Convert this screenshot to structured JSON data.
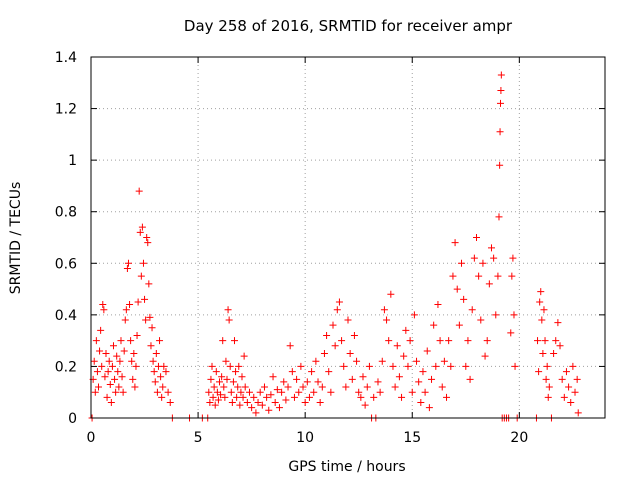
{
  "chart_data": {
    "type": "scatter",
    "title": "Day 258 of 2016, SRMTID for receiver ampr",
    "xlabel": "GPS time / hours",
    "ylabel": "SRMTID / TECUs",
    "xlim": [
      0,
      24
    ],
    "ylim": [
      0,
      1.4
    ],
    "xticks": [
      0,
      5,
      10,
      15,
      20
    ],
    "xtick_labels": [
      "0",
      "5",
      "10",
      "15",
      "20"
    ],
    "yticks": [
      0,
      0.2,
      0.4,
      0.6,
      0.8,
      1.0,
      1.2,
      1.4
    ],
    "ytick_labels": [
      "0",
      "0.2",
      "0.4",
      "0.6",
      "0.8",
      "1",
      "1.2",
      "1.4"
    ],
    "grid": true,
    "marker": "+",
    "color": "#ff0000",
    "series": [
      {
        "name": "SRMTID",
        "points": [
          [
            0.05,
            0.0
          ],
          [
            0.1,
            0.15
          ],
          [
            0.15,
            0.22
          ],
          [
            0.2,
            0.1
          ],
          [
            0.25,
            0.3
          ],
          [
            0.3,
            0.18
          ],
          [
            0.35,
            0.12
          ],
          [
            0.4,
            0.26
          ],
          [
            0.45,
            0.34
          ],
          [
            0.5,
            0.2
          ],
          [
            0.55,
            0.44
          ],
          [
            0.6,
            0.42
          ],
          [
            0.65,
            0.16
          ],
          [
            0.7,
            0.25
          ],
          [
            0.75,
            0.08
          ],
          [
            0.8,
            0.18
          ],
          [
            0.85,
            0.22
          ],
          [
            0.9,
            0.13
          ],
          [
            0.95,
            0.06
          ],
          [
            1.0,
            0.2
          ],
          [
            1.05,
            0.28
          ],
          [
            1.1,
            0.15
          ],
          [
            1.15,
            0.1
          ],
          [
            1.2,
            0.24
          ],
          [
            1.25,
            0.18
          ],
          [
            1.3,
            0.12
          ],
          [
            1.35,
            0.22
          ],
          [
            1.4,
            0.3
          ],
          [
            1.45,
            0.16
          ],
          [
            1.5,
            0.1
          ],
          [
            1.55,
            0.26
          ],
          [
            1.6,
            0.38
          ],
          [
            1.65,
            0.42
          ],
          [
            1.7,
            0.58
          ],
          [
            1.75,
            0.6
          ],
          [
            1.8,
            0.44
          ],
          [
            1.85,
            0.3
          ],
          [
            1.9,
            0.22
          ],
          [
            1.95,
            0.15
          ],
          [
            2.0,
            0.25
          ],
          [
            2.05,
            0.12
          ],
          [
            2.1,
            0.2
          ],
          [
            2.15,
            0.32
          ],
          [
            2.2,
            0.45
          ],
          [
            2.25,
            0.88
          ],
          [
            2.3,
            0.72
          ],
          [
            2.35,
            0.55
          ],
          [
            2.4,
            0.74
          ],
          [
            2.45,
            0.6
          ],
          [
            2.5,
            0.46
          ],
          [
            2.55,
            0.38
          ],
          [
            2.6,
            0.7
          ],
          [
            2.65,
            0.68
          ],
          [
            2.7,
            0.52
          ],
          [
            2.75,
            0.39
          ],
          [
            2.8,
            0.28
          ],
          [
            2.85,
            0.35
          ],
          [
            2.9,
            0.22
          ],
          [
            2.95,
            0.18
          ],
          [
            3.0,
            0.14
          ],
          [
            3.05,
            0.25
          ],
          [
            3.1,
            0.1
          ],
          [
            3.15,
            0.2
          ],
          [
            3.2,
            0.3
          ],
          [
            3.25,
            0.16
          ],
          [
            3.3,
            0.08
          ],
          [
            3.35,
            0.12
          ],
          [
            3.4,
            0.2
          ],
          [
            3.5,
            0.18
          ],
          [
            3.6,
            0.1
          ],
          [
            3.7,
            0.06
          ],
          [
            3.8,
            0.0
          ],
          [
            4.6,
            0.0
          ],
          [
            5.2,
            0.0
          ],
          [
            5.45,
            0.0
          ],
          [
            5.5,
            0.1
          ],
          [
            5.55,
            0.06
          ],
          [
            5.6,
            0.15
          ],
          [
            5.65,
            0.2
          ],
          [
            5.7,
            0.08
          ],
          [
            5.75,
            0.12
          ],
          [
            5.8,
            0.05
          ],
          [
            5.85,
            0.18
          ],
          [
            5.9,
            0.1
          ],
          [
            5.95,
            0.07
          ],
          [
            6.0,
            0.14
          ],
          [
            6.05,
            0.09
          ],
          [
            6.1,
            0.16
          ],
          [
            6.15,
            0.3
          ],
          [
            6.2,
            0.12
          ],
          [
            6.25,
            0.08
          ],
          [
            6.3,
            0.22
          ],
          [
            6.35,
            0.15
          ],
          [
            6.4,
            0.42
          ],
          [
            6.45,
            0.38
          ],
          [
            6.5,
            0.2
          ],
          [
            6.55,
            0.1
          ],
          [
            6.6,
            0.06
          ],
          [
            6.65,
            0.14
          ],
          [
            6.7,
            0.3
          ],
          [
            6.75,
            0.18
          ],
          [
            6.8,
            0.08
          ],
          [
            6.85,
            0.12
          ],
          [
            6.9,
            0.2
          ],
          [
            6.95,
            0.05
          ],
          [
            7.0,
            0.1
          ],
          [
            7.05,
            0.16
          ],
          [
            7.1,
            0.08
          ],
          [
            7.15,
            0.24
          ],
          [
            7.2,
            0.12
          ],
          [
            7.3,
            0.06
          ],
          [
            7.4,
            0.1
          ],
          [
            7.5,
            0.04
          ],
          [
            7.6,
            0.08
          ],
          [
            7.7,
            0.02
          ],
          [
            7.8,
            0.06
          ],
          [
            7.9,
            0.1
          ],
          [
            8.0,
            0.05
          ],
          [
            8.1,
            0.12
          ],
          [
            8.2,
            0.08
          ],
          [
            8.3,
            0.03
          ],
          [
            8.4,
            0.09
          ],
          [
            8.5,
            0.16
          ],
          [
            8.6,
            0.06
          ],
          [
            8.7,
            0.11
          ],
          [
            8.8,
            0.04
          ],
          [
            8.9,
            0.1
          ],
          [
            9.0,
            0.14
          ],
          [
            9.1,
            0.07
          ],
          [
            9.2,
            0.12
          ],
          [
            9.3,
            0.28
          ],
          [
            9.4,
            0.18
          ],
          [
            9.5,
            0.08
          ],
          [
            9.6,
            0.15
          ],
          [
            9.7,
            0.1
          ],
          [
            9.8,
            0.2
          ],
          [
            9.9,
            0.12
          ],
          [
            10.0,
            0.06
          ],
          [
            10.1,
            0.14
          ],
          [
            10.2,
            0.08
          ],
          [
            10.3,
            0.18
          ],
          [
            10.4,
            0.1
          ],
          [
            10.5,
            0.22
          ],
          [
            10.6,
            0.14
          ],
          [
            10.7,
            0.06
          ],
          [
            10.8,
            0.12
          ],
          [
            10.9,
            0.25
          ],
          [
            11.0,
            0.32
          ],
          [
            11.1,
            0.18
          ],
          [
            11.2,
            0.1
          ],
          [
            11.3,
            0.36
          ],
          [
            11.4,
            0.28
          ],
          [
            11.5,
            0.42
          ],
          [
            11.6,
            0.45
          ],
          [
            11.7,
            0.3
          ],
          [
            11.8,
            0.2
          ],
          [
            11.9,
            0.12
          ],
          [
            12.0,
            0.38
          ],
          [
            12.1,
            0.25
          ],
          [
            12.2,
            0.15
          ],
          [
            12.3,
            0.32
          ],
          [
            12.4,
            0.22
          ],
          [
            12.5,
            0.1
          ],
          [
            12.6,
            0.08
          ],
          [
            12.7,
            0.16
          ],
          [
            12.8,
            0.05
          ],
          [
            12.9,
            0.12
          ],
          [
            13.0,
            0.2
          ],
          [
            13.1,
            0.0
          ],
          [
            13.2,
            0.08
          ],
          [
            13.3,
            0.0
          ],
          [
            13.4,
            0.14
          ],
          [
            13.5,
            0.1
          ],
          [
            13.6,
            0.22
          ],
          [
            13.7,
            0.42
          ],
          [
            13.8,
            0.38
          ],
          [
            13.9,
            0.3
          ],
          [
            14.0,
            0.48
          ],
          [
            14.1,
            0.2
          ],
          [
            14.2,
            0.12
          ],
          [
            14.3,
            0.28
          ],
          [
            14.4,
            0.16
          ],
          [
            14.5,
            0.08
          ],
          [
            14.6,
            0.24
          ],
          [
            14.7,
            0.34
          ],
          [
            14.8,
            0.2
          ],
          [
            14.9,
            0.3
          ],
          [
            15.0,
            0.1
          ],
          [
            15.1,
            0.4
          ],
          [
            15.2,
            0.22
          ],
          [
            15.3,
            0.14
          ],
          [
            15.4,
            0.06
          ],
          [
            15.5,
            0.18
          ],
          [
            15.6,
            0.1
          ],
          [
            15.7,
            0.26
          ],
          [
            15.8,
            0.04
          ],
          [
            15.9,
            0.15
          ],
          [
            16.0,
            0.36
          ],
          [
            16.1,
            0.2
          ],
          [
            16.2,
            0.44
          ],
          [
            16.3,
            0.3
          ],
          [
            16.4,
            0.12
          ],
          [
            16.5,
            0.22
          ],
          [
            16.6,
            0.08
          ],
          [
            16.7,
            0.3
          ],
          [
            16.8,
            0.2
          ],
          [
            16.9,
            0.55
          ],
          [
            17.0,
            0.68
          ],
          [
            17.1,
            0.5
          ],
          [
            17.2,
            0.36
          ],
          [
            17.3,
            0.6
          ],
          [
            17.4,
            0.46
          ],
          [
            17.5,
            0.2
          ],
          [
            17.6,
            0.3
          ],
          [
            17.7,
            0.15
          ],
          [
            17.8,
            0.42
          ],
          [
            17.9,
            0.62
          ],
          [
            18.0,
            0.7
          ],
          [
            18.1,
            0.55
          ],
          [
            18.2,
            0.38
          ],
          [
            18.3,
            0.6
          ],
          [
            18.4,
            0.24
          ],
          [
            18.5,
            0.3
          ],
          [
            18.6,
            0.52
          ],
          [
            18.7,
            0.66
          ],
          [
            18.8,
            0.62
          ],
          [
            18.9,
            0.4
          ],
          [
            19.0,
            0.55
          ],
          [
            19.05,
            0.78
          ],
          [
            19.08,
            0.98
          ],
          [
            19.1,
            1.11
          ],
          [
            19.12,
            1.22
          ],
          [
            19.14,
            1.27
          ],
          [
            19.16,
            1.33
          ],
          [
            19.2,
            0.0
          ],
          [
            19.3,
            0.0
          ],
          [
            19.4,
            0.0
          ],
          [
            19.5,
            0.0
          ],
          [
            19.6,
            0.33
          ],
          [
            19.65,
            0.55
          ],
          [
            19.7,
            0.62
          ],
          [
            19.75,
            0.4
          ],
          [
            19.8,
            0.2
          ],
          [
            19.9,
            0.0
          ],
          [
            20.8,
            0.0
          ],
          [
            20.85,
            0.3
          ],
          [
            20.9,
            0.18
          ],
          [
            20.95,
            0.45
          ],
          [
            21.0,
            0.49
          ],
          [
            21.05,
            0.38
          ],
          [
            21.1,
            0.25
          ],
          [
            21.15,
            0.42
          ],
          [
            21.2,
            0.3
          ],
          [
            21.25,
            0.15
          ],
          [
            21.3,
            0.2
          ],
          [
            21.35,
            0.08
          ],
          [
            21.4,
            0.12
          ],
          [
            21.5,
            0.0
          ],
          [
            21.6,
            0.25
          ],
          [
            21.7,
            0.3
          ],
          [
            21.8,
            0.37
          ],
          [
            21.9,
            0.28
          ],
          [
            22.0,
            0.15
          ],
          [
            22.1,
            0.08
          ],
          [
            22.2,
            0.18
          ],
          [
            22.3,
            0.12
          ],
          [
            22.4,
            0.06
          ],
          [
            22.5,
            0.2
          ],
          [
            22.6,
            0.1
          ],
          [
            22.7,
            0.15
          ],
          [
            22.75,
            0.02
          ]
        ]
      }
    ]
  }
}
